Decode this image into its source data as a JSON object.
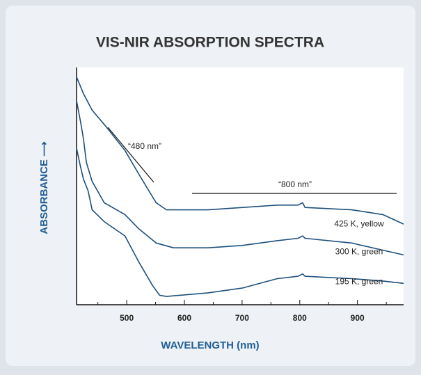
{
  "chart_data": {
    "type": "line",
    "title": "VIS-NIR ABSORPTION SPECTRA",
    "xlabel": "WAVELENGTH (nm)",
    "ylabel": "ABSORBANCE ⟶",
    "xlim": [
      413,
      980
    ],
    "ylim": [
      0,
      1
    ],
    "xticks": [
      500,
      600,
      700,
      800,
      900
    ],
    "minor_xticks": [
      450,
      550,
      650,
      750,
      850,
      950
    ],
    "annotations": [
      "“480 nm”",
      "“800 nm”"
    ],
    "series": [
      {
        "name": "425 K, yellow",
        "color": "#1c4f7c",
        "x": [
          413,
          425,
          440,
          461,
          497,
          521,
          551,
          569,
          641,
          761,
          797,
          805,
          809,
          890,
          944,
          980
        ],
        "values": [
          0.96,
          0.89,
          0.82,
          0.76,
          0.65,
          0.55,
          0.43,
          0.4,
          0.4,
          0.42,
          0.42,
          0.43,
          0.41,
          0.4,
          0.38,
          0.34
        ]
      },
      {
        "name": "300 K, green",
        "color": "#1c4f7c",
        "x": [
          413,
          420,
          425,
          430,
          440,
          461,
          497,
          521,
          551,
          581,
          641,
          700,
          761,
          797,
          805,
          809,
          890,
          944,
          980
        ],
        "values": [
          0.86,
          0.77,
          0.7,
          0.6,
          0.52,
          0.43,
          0.38,
          0.32,
          0.26,
          0.24,
          0.24,
          0.25,
          0.27,
          0.28,
          0.29,
          0.28,
          0.26,
          0.23,
          0.21
        ]
      },
      {
        "name": "195 K, green",
        "color": "#1c4f7c",
        "x": [
          413,
          420,
          425,
          433,
          440,
          461,
          497,
          521,
          545,
          557,
          569,
          641,
          700,
          761,
          797,
          805,
          809,
          890,
          944,
          980
        ],
        "values": [
          0.66,
          0.58,
          0.53,
          0.48,
          0.4,
          0.35,
          0.29,
          0.18,
          0.08,
          0.04,
          0.035,
          0.05,
          0.07,
          0.11,
          0.12,
          0.13,
          0.12,
          0.11,
          0.1,
          0.09
        ]
      }
    ]
  }
}
